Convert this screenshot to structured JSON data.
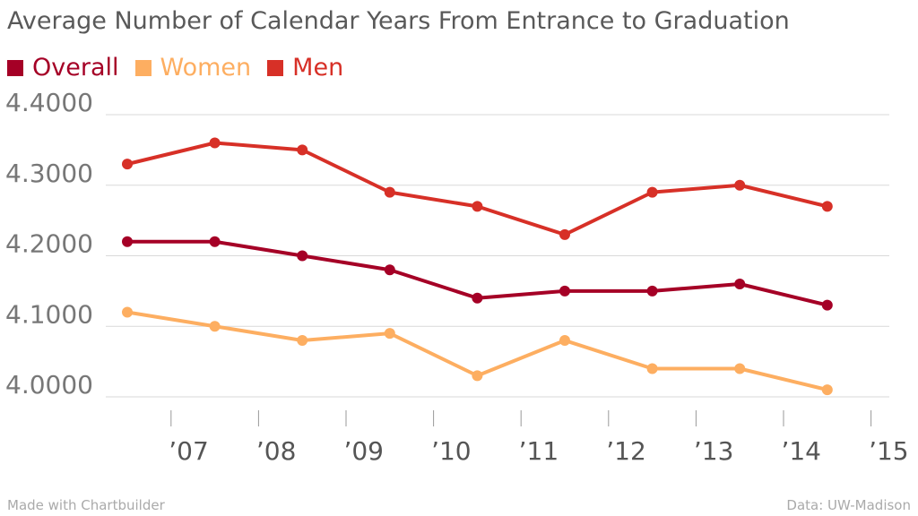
{
  "chart_data": {
    "type": "line",
    "title": "Average Number of Calendar Years From Entrance to Graduation",
    "categories": [
      "’07",
      "’08",
      "’09",
      "’10",
      "’11",
      "’12",
      "’13",
      "’14",
      "’15"
    ],
    "series": [
      {
        "name": "Overall",
        "color": "#a50026",
        "values": [
          4.22,
          4.22,
          4.2,
          4.18,
          4.14,
          4.15,
          4.15,
          4.16,
          4.13
        ]
      },
      {
        "name": "Women",
        "color": "#fdae61",
        "values": [
          4.12,
          4.1,
          4.08,
          4.09,
          4.03,
          4.08,
          4.04,
          4.04,
          4.01
        ]
      },
      {
        "name": "Men",
        "color": "#d73027",
        "values": [
          4.33,
          4.36,
          4.35,
          4.29,
          4.27,
          4.23,
          4.29,
          4.3,
          4.27
        ]
      }
    ],
    "ylim": [
      4.0,
      4.4
    ],
    "yticks": [
      "4.0000",
      "4.1000",
      "4.2000",
      "4.3000",
      "4.4000"
    ],
    "ytick_values": [
      4.0,
      4.1,
      4.2,
      4.3,
      4.4
    ],
    "legend_position": "top-left",
    "grid": true
  },
  "footer": {
    "credit": "Made with Chartbuilder",
    "source": "Data: UW-Madison"
  }
}
